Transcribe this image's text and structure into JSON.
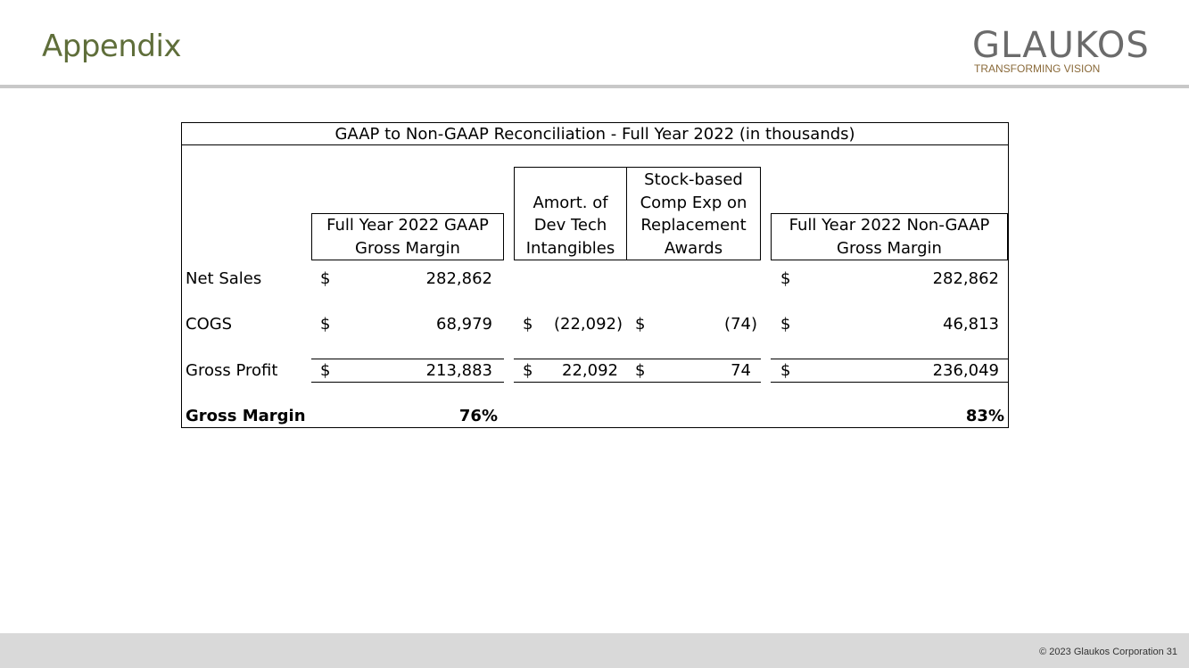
{
  "page": {
    "title": "Appendix",
    "footer": "© 2023 Glaukos Corporation   31"
  },
  "logo": {
    "name": "GLAUKOS",
    "tagline": "TRANSFORMING VISION"
  },
  "table": {
    "caption": "GAAP to Non-GAAP Reconciliation - Full Year 2022 (in thousands)",
    "headers": {
      "gaap": "Full Year 2022 GAAP Gross Margin",
      "amort": "Amort. of Dev Tech Intangibles",
      "stock": "Stock-based Comp Exp on Replacement Awards",
      "nongaap": "Full Year 2022 Non-GAAP Gross Margin"
    },
    "currency": "$",
    "rows": {
      "net_sales": {
        "label": "Net Sales",
        "gaap": "282,862",
        "amort": "",
        "stock": "",
        "nongaap": "282,862"
      },
      "cogs": {
        "label": "COGS",
        "gaap": "68,979",
        "amort": "(22,092)",
        "stock": "(74)",
        "nongaap": "46,813"
      },
      "gross_profit": {
        "label": "Gross Profit",
        "gaap": "213,883",
        "amort": "22,092",
        "stock": "74",
        "nongaap": "236,049"
      },
      "gross_margin": {
        "label": "Gross Margin",
        "gaap": "76%",
        "nongaap": "83%"
      }
    }
  }
}
